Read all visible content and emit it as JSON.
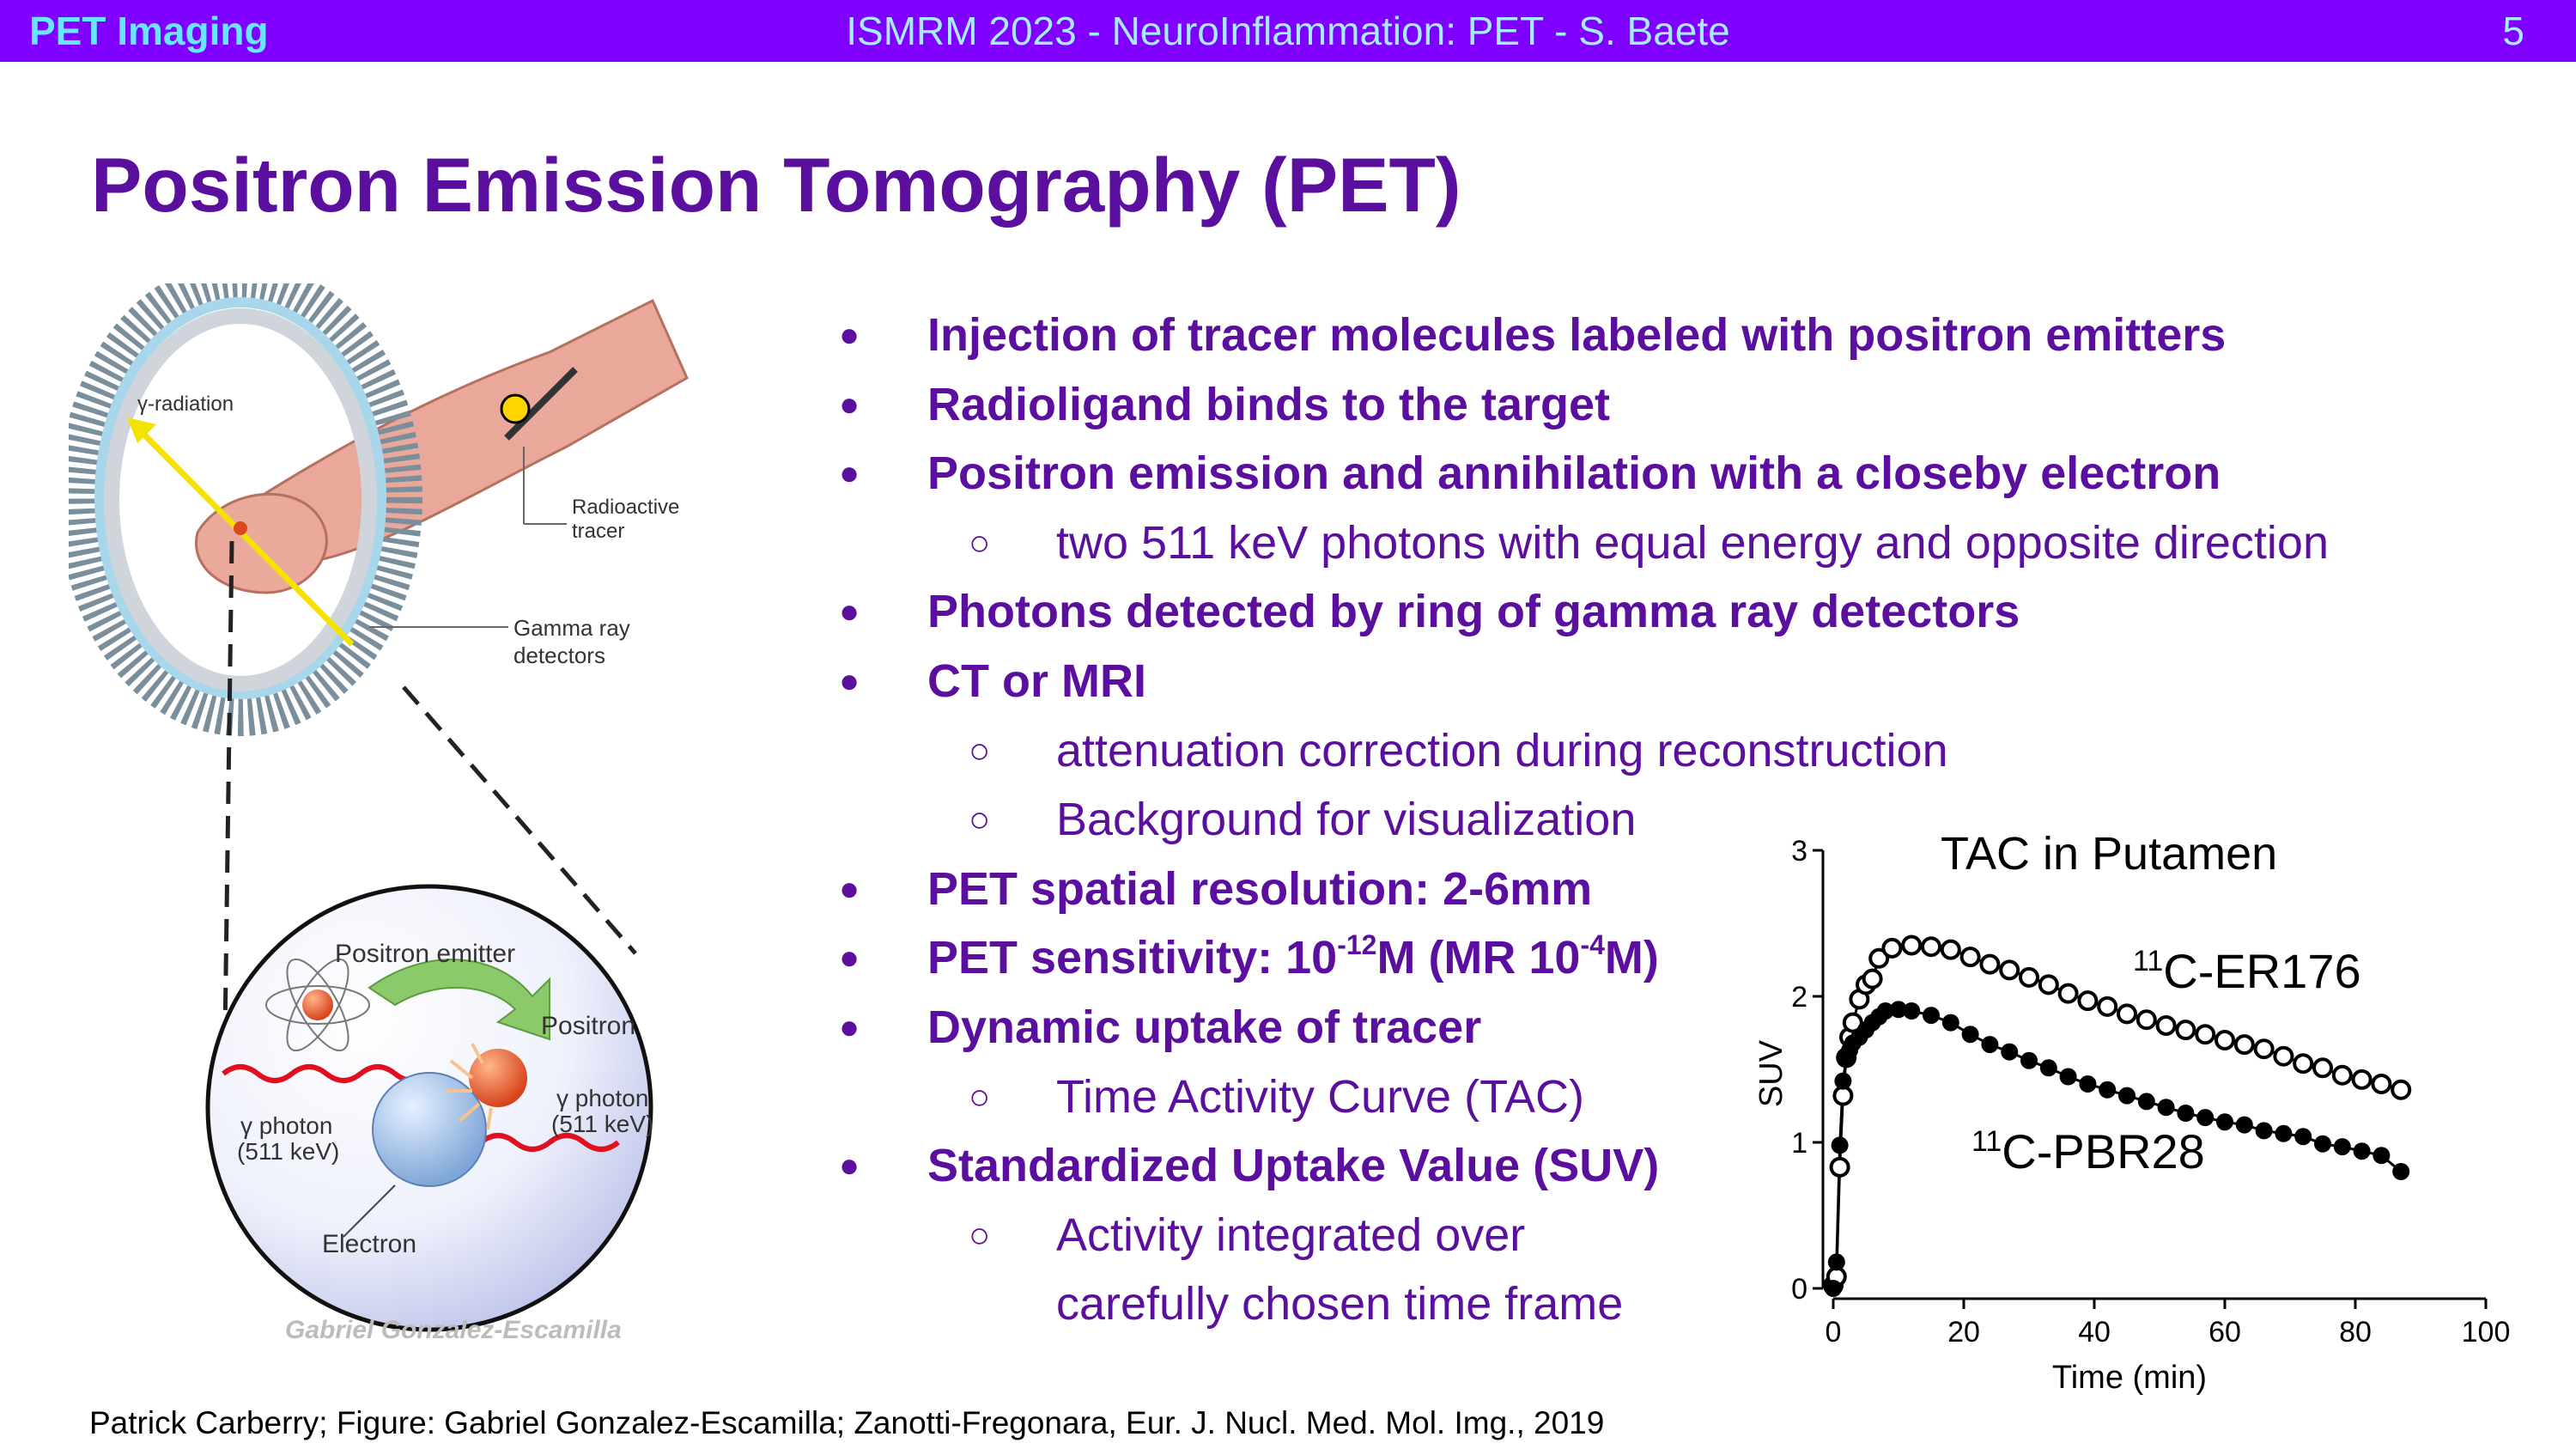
{
  "header": {
    "section": "PET Imaging",
    "center": "ISMRM 2023 - NeuroInflammation: PET - S. Baete",
    "page": "5"
  },
  "title": "Positron Emission Tomography (PET)",
  "bullets": [
    {
      "level": 1,
      "text": "Injection of tracer molecules labeled with positron emitters"
    },
    {
      "level": 1,
      "text": "Radioligand binds to the target"
    },
    {
      "level": 1,
      "text": "Positron emission and annihilation with a closeby electron"
    },
    {
      "level": 2,
      "text": "two 511 keV photons with equal energy and opposite direction"
    },
    {
      "level": 1,
      "text": "Photons detected by ring of gamma ray detectors"
    },
    {
      "level": 1,
      "text": "CT or MRI"
    },
    {
      "level": 2,
      "text": "attenuation correction during reconstruction"
    },
    {
      "level": 2,
      "text": "Background for visualization"
    },
    {
      "level": 1,
      "text": "PET spatial resolution: 2-6mm"
    },
    {
      "level": 1,
      "text_before": "PET sensitivity: 10",
      "sup1": "-12",
      "text_mid": "M (MR 10",
      "sup2": "-4",
      "text_after": "M)"
    },
    {
      "level": 1,
      "text": "Dynamic uptake of tracer"
    },
    {
      "level": 2,
      "text": "Time Activity Curve (TAC)"
    },
    {
      "level": 1,
      "text": "Standardized Uptake Value (SUV)"
    },
    {
      "level": 2,
      "text": "Activity integrated over"
    },
    {
      "level": 2,
      "text": "carefully chosen time frame",
      "no_marker": true
    }
  ],
  "markers": {
    "level1": "●",
    "level2": "○"
  },
  "illustration": {
    "ring_labels": {
      "gamma_radiation": "γ-radiation",
      "radioactive_tracer_line1": "Radioactive",
      "radioactive_tracer_line2": "tracer",
      "gamma_detectors_line1": "Gamma ray",
      "gamma_detectors_line2": "detectors"
    },
    "annihilation_labels": {
      "positron_emitter": "Positron emitter",
      "positron": "Positron",
      "photon_left_line1": "γ photon",
      "photon_left_line2": "(511 keV)",
      "photon_right_line1": "γ photon",
      "photon_right_line2": "(511 keV)",
      "electron": "Electron"
    },
    "signature": "Gabriel Gonzalez-Escamilla"
  },
  "chart_data": {
    "type": "scatter",
    "title": "TAC in Putamen",
    "xlabel": "Time (min)",
    "ylabel": "SUV",
    "xlim": [
      0,
      100
    ],
    "ylim": [
      0,
      3
    ],
    "xticks": [
      "0",
      "20",
      "40",
      "60",
      "80",
      "100"
    ],
    "yticks": [
      "0",
      "1",
      "2",
      "3"
    ],
    "series": [
      {
        "label_prefix": "11",
        "label_main": "C-ER176",
        "marker": "open-circle",
        "fit_curve": true,
        "x": [
          0,
          0.5,
          1,
          1.5,
          2,
          2.5,
          3,
          4,
          5,
          6,
          7,
          9,
          12,
          15,
          18,
          21,
          24,
          27,
          30,
          33,
          36,
          39,
          42,
          45,
          48,
          51,
          54,
          57,
          60,
          63,
          66,
          69,
          72,
          75,
          78,
          81,
          84,
          87
        ],
        "y": [
          0.02,
          0.08,
          0.83,
          1.32,
          1.58,
          1.72,
          1.82,
          1.98,
          2.08,
          2.12,
          2.26,
          2.33,
          2.35,
          2.34,
          2.32,
          2.27,
          2.22,
          2.18,
          2.13,
          2.08,
          2.02,
          1.97,
          1.93,
          1.88,
          1.84,
          1.8,
          1.77,
          1.74,
          1.7,
          1.67,
          1.64,
          1.59,
          1.54,
          1.51,
          1.46,
          1.43,
          1.4,
          1.36
        ]
      },
      {
        "label_prefix": "11",
        "label_main": "C-PBR28",
        "marker": "filled-circle",
        "fit_curve": true,
        "x": [
          0,
          0.5,
          1,
          1.5,
          2,
          2.5,
          3,
          4,
          5,
          6,
          7,
          8,
          10,
          12,
          15,
          18,
          21,
          24,
          27,
          30,
          33,
          36,
          39,
          42,
          45,
          48,
          51,
          54,
          57,
          60,
          63,
          66,
          69,
          72,
          75,
          78,
          81,
          84,
          87
        ],
        "y": [
          0.0,
          0.18,
          0.98,
          1.42,
          1.58,
          1.63,
          1.68,
          1.72,
          1.77,
          1.82,
          1.86,
          1.9,
          1.91,
          1.9,
          1.87,
          1.82,
          1.74,
          1.67,
          1.62,
          1.56,
          1.51,
          1.45,
          1.4,
          1.36,
          1.32,
          1.28,
          1.24,
          1.2,
          1.17,
          1.14,
          1.12,
          1.08,
          1.06,
          1.04,
          0.99,
          0.97,
          0.94,
          0.91,
          0.8
        ]
      }
    ]
  },
  "footer": "Patrick Carberry; Figure: Gabriel Gonzalez-Escamilla; Zanotti-Fregonara, Eur. J. Nucl. Med. Mol. Img., 2019",
  "colors": {
    "header_bg": "#8000ff",
    "header_section": "#66e6ff",
    "header_text": "#a6ecff",
    "title": "#5b0f9e",
    "body_text": "#5b0f9e"
  }
}
